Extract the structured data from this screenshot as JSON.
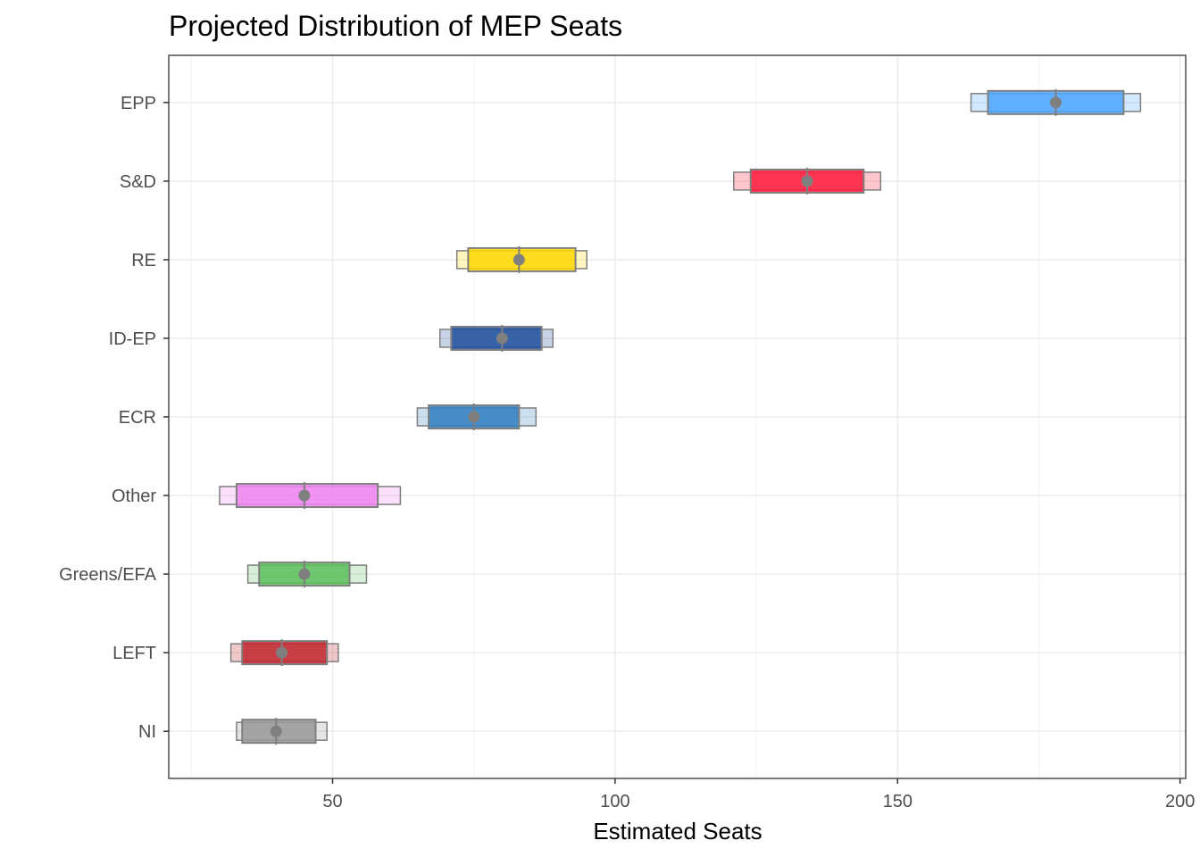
{
  "chart_data": {
    "type": "bar",
    "subtype": "interval-range",
    "title": "Projected Distribution of MEP Seats",
    "xlabel": "Estimated Seats",
    "ylabel": "",
    "xlim": [
      21,
      201
    ],
    "xticks": [
      50,
      100,
      150,
      200
    ],
    "grid": true,
    "legend": "none",
    "categories": [
      "EPP",
      "S&D",
      "RE",
      "ID-EP",
      "ECR",
      "Other",
      "Greens/EFA",
      "LEFT",
      "NI"
    ],
    "series": [
      {
        "party": "EPP",
        "outer": [
          163,
          193
        ],
        "inner": [
          166,
          190
        ],
        "estimate": 178,
        "color": "#4da6ff"
      },
      {
        "party": "S&D",
        "outer": [
          121,
          147
        ],
        "inner": [
          124,
          144
        ],
        "estimate": 134,
        "color": "#ff1a3c"
      },
      {
        "party": "RE",
        "outer": [
          72,
          95
        ],
        "inner": [
          74,
          93
        ],
        "estimate": 83,
        "color": "#ffd700"
      },
      {
        "party": "ID-EP",
        "outer": [
          69,
          89
        ],
        "inner": [
          71,
          87
        ],
        "estimate": 80,
        "color": "#1f4e9c"
      },
      {
        "party": "ECR",
        "outer": [
          65,
          86
        ],
        "inner": [
          67,
          83
        ],
        "estimate": 75,
        "color": "#2f7fc1"
      },
      {
        "party": "Other",
        "outer": [
          30,
          62
        ],
        "inner": [
          33,
          58
        ],
        "estimate": 45,
        "color": "#ee82ee"
      },
      {
        "party": "Greens/EFA",
        "outer": [
          35,
          56
        ],
        "inner": [
          37,
          53
        ],
        "estimate": 45,
        "color": "#5cbf5c"
      },
      {
        "party": "LEFT",
        "outer": [
          32,
          51
        ],
        "inner": [
          34,
          49
        ],
        "estimate": 41,
        "color": "#c0262d"
      },
      {
        "party": "NI",
        "outer": [
          33,
          49
        ],
        "inner": [
          34,
          47
        ],
        "estimate": 40,
        "color": "#999999"
      }
    ]
  }
}
